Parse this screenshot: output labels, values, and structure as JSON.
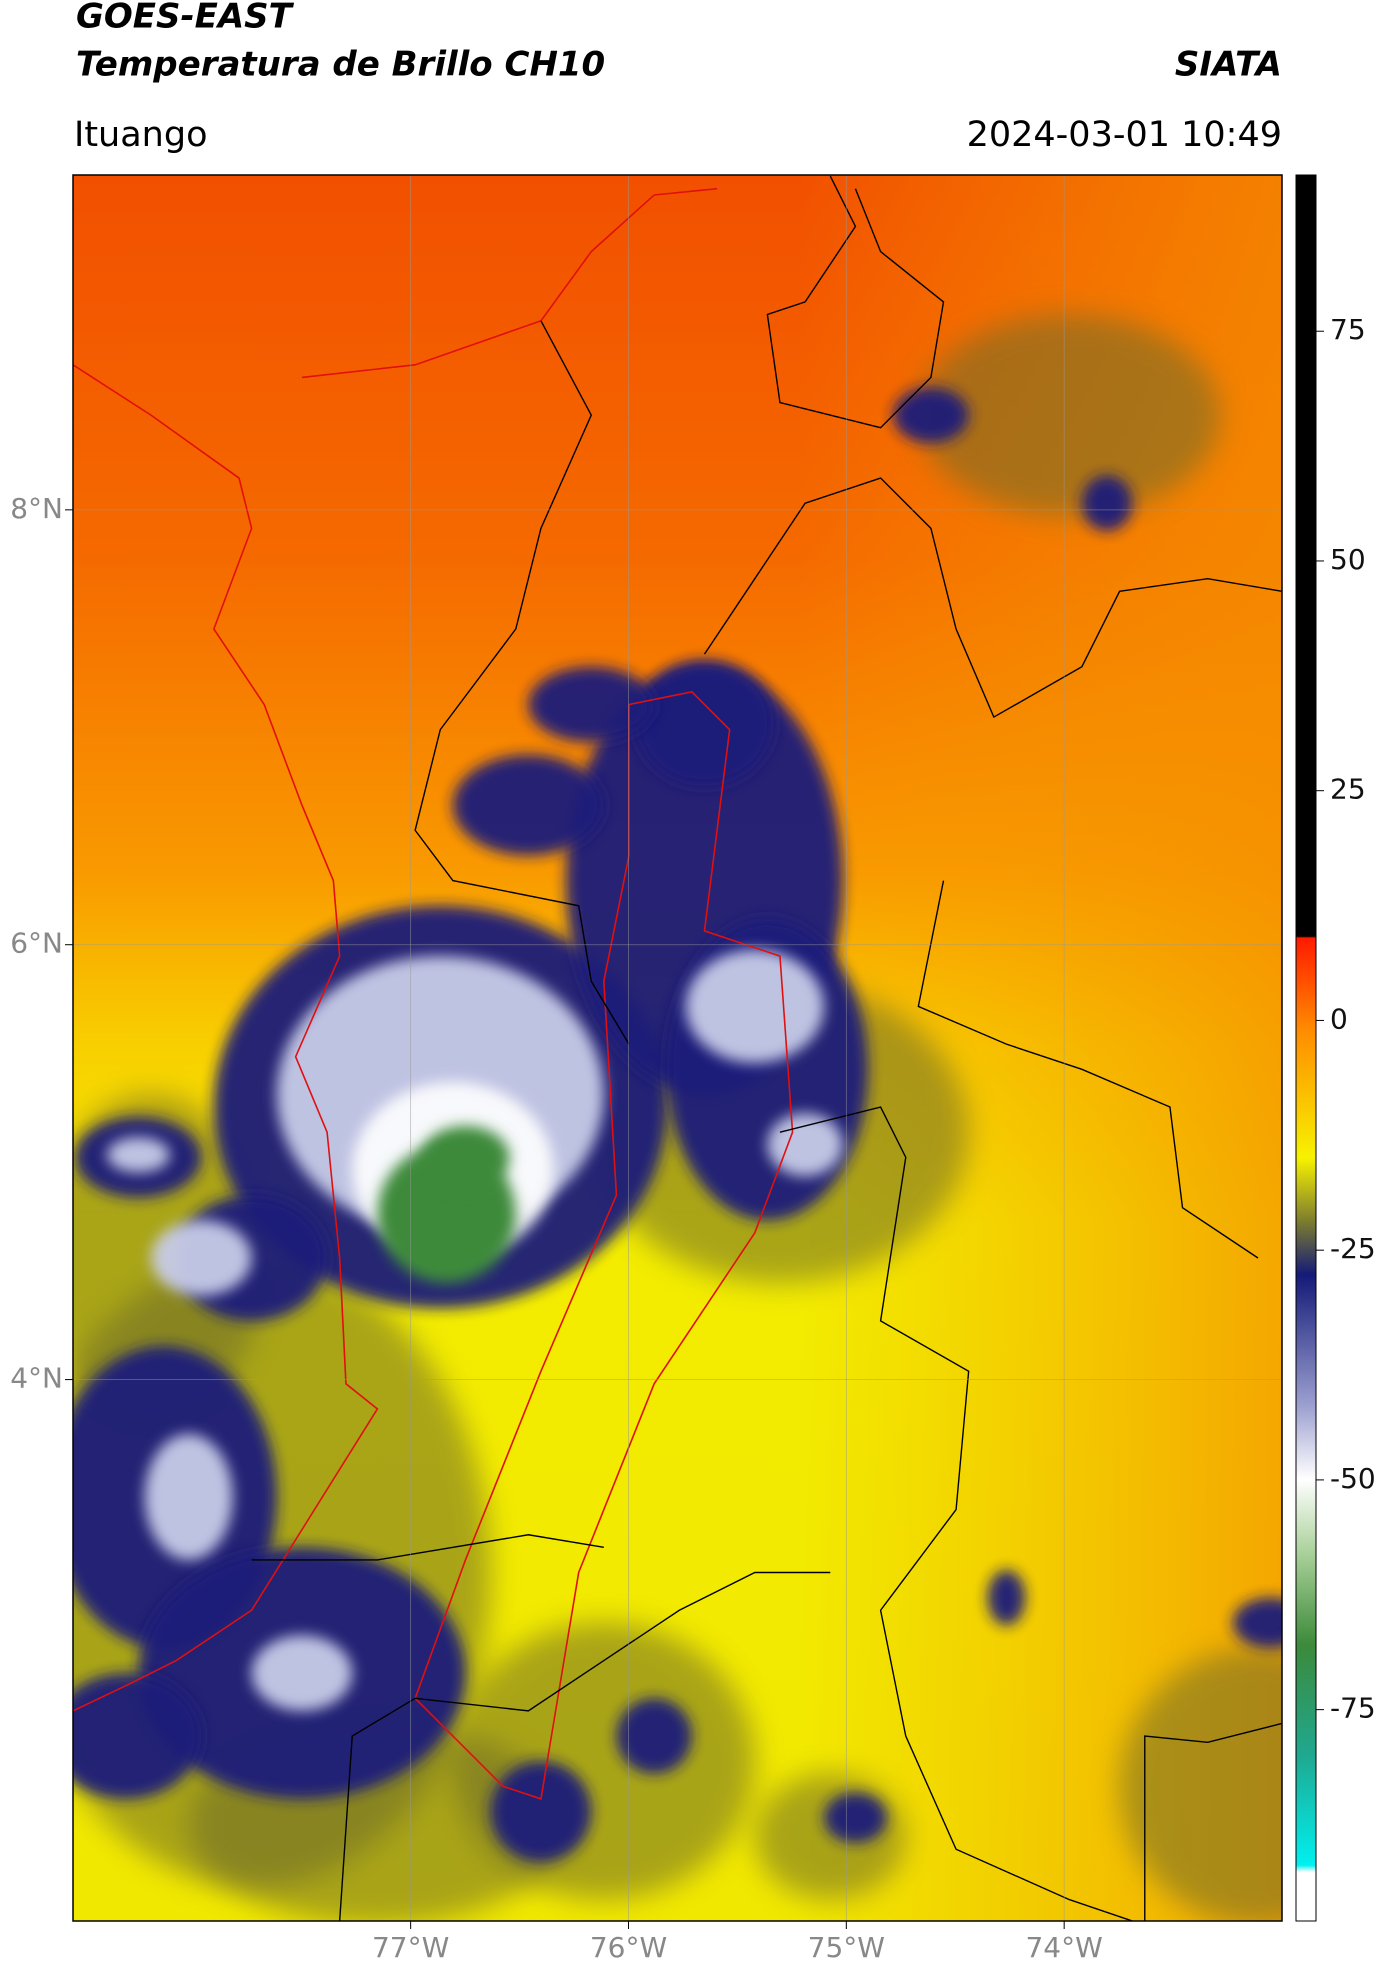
{
  "header": {
    "title": "GOES-EAST",
    "subtitle": "Temperatura de Brillo CH10",
    "credit": "SIATA",
    "location": "Ituango",
    "datetime": "2024-03-01 10:49"
  },
  "map": {
    "xlim": [
      -78.55,
      -73.0
    ],
    "ylim": [
      1.51,
      9.54
    ],
    "xticks": [
      {
        "value": -77,
        "label": "77°W"
      },
      {
        "value": -76,
        "label": "76°W"
      },
      {
        "value": -75,
        "label": "75°W"
      },
      {
        "value": -74,
        "label": "74°W"
      }
    ],
    "yticks": [
      {
        "value": 8,
        "label": "8°N"
      },
      {
        "value": 6,
        "label": "6°N"
      },
      {
        "value": 4,
        "label": "4°N"
      }
    ],
    "grid": true
  },
  "colorbar": {
    "lim": [
      -98,
      92
    ],
    "ticks": [
      75,
      50,
      25,
      0,
      -25,
      -50,
      -75
    ]
  }
}
